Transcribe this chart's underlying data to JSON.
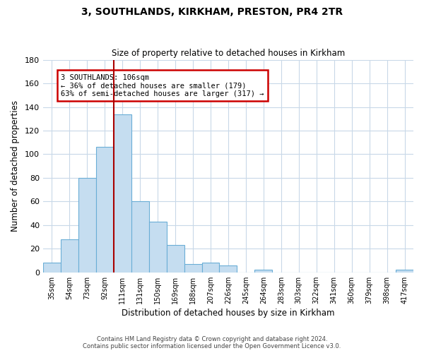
{
  "title": "3, SOUTHLANDS, KIRKHAM, PRESTON, PR4 2TR",
  "subtitle": "Size of property relative to detached houses in Kirkham",
  "xlabel": "Distribution of detached houses by size in Kirkham",
  "ylabel": "Number of detached properties",
  "categories": [
    "35sqm",
    "54sqm",
    "73sqm",
    "92sqm",
    "111sqm",
    "131sqm",
    "150sqm",
    "169sqm",
    "188sqm",
    "207sqm",
    "226sqm",
    "245sqm",
    "264sqm",
    "283sqm",
    "303sqm",
    "322sqm",
    "341sqm",
    "360sqm",
    "379sqm",
    "398sqm",
    "417sqm"
  ],
  "values": [
    8,
    28,
    80,
    106,
    134,
    60,
    43,
    23,
    7,
    8,
    6,
    0,
    2,
    0,
    0,
    0,
    0,
    0,
    0,
    0,
    2
  ],
  "bar_color": "#c5ddf0",
  "bar_edge_color": "#6aaed6",
  "vline_color": "#aa0000",
  "vline_index": 3.5,
  "annotation_text": "3 SOUTHLANDS: 106sqm\n← 36% of detached houses are smaller (179)\n63% of semi-detached houses are larger (317) →",
  "annotation_box_edgecolor": "#cc0000",
  "ylim": [
    0,
    180
  ],
  "yticks": [
    0,
    20,
    40,
    60,
    80,
    100,
    120,
    140,
    160,
    180
  ],
  "footer_line1": "Contains HM Land Registry data © Crown copyright and database right 2024.",
  "footer_line2": "Contains public sector information licensed under the Open Government Licence v3.0.",
  "background_color": "#ffffff",
  "grid_color": "#c8d8e8"
}
